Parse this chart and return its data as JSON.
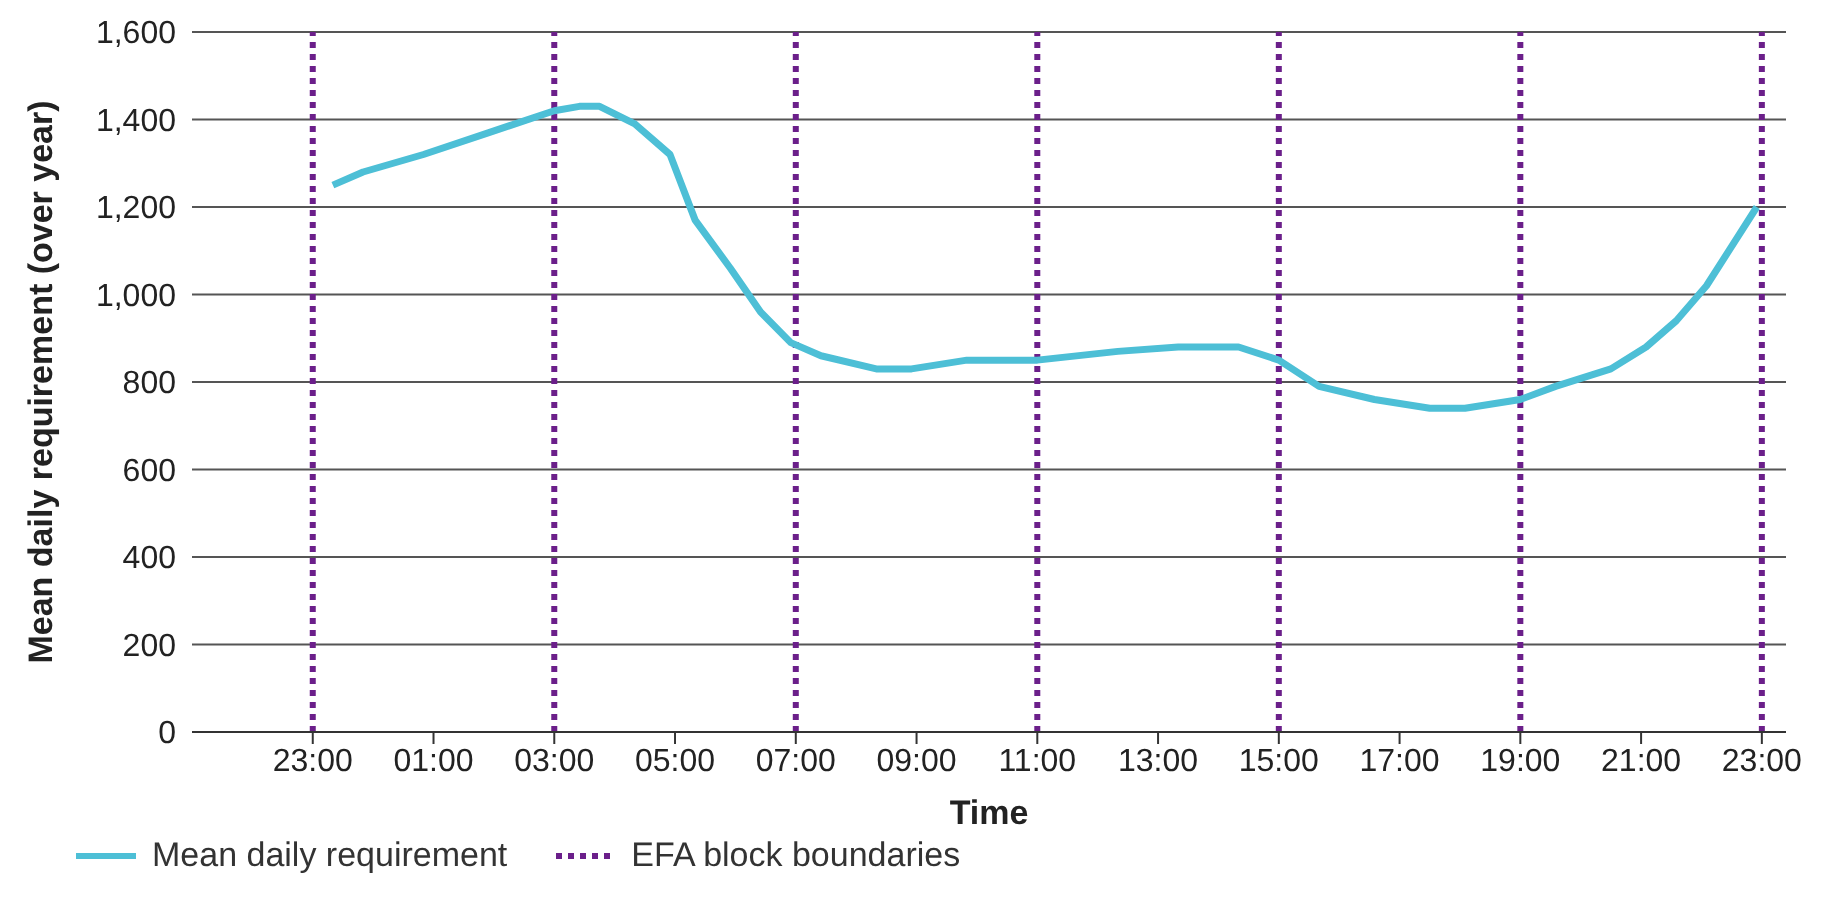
{
  "chart_data": {
    "type": "line",
    "xlabel": "Time",
    "ylabel": "Mean daily requirement (over year)",
    "x": [
      "--01-01T23:20",
      "--01-01T23:50",
      "--01-02T00:50",
      "--01-02T01:55",
      "--01-02T03:00",
      "--01-02T03:25",
      "--01-02T03:45",
      "--01-02T04:20",
      "--01-02T04:55",
      "--01-02T05:20",
      "--01-02T05:55",
      "--01-02T06:25",
      "--01-02T06:55",
      "--01-02T07:25",
      "--01-02T08:20",
      "--01-02T08:55",
      "--01-02T09:50",
      "--01-02T11:00",
      "--01-02T12:20",
      "--01-02T13:20",
      "--01-02T14:20",
      "--01-02T15:00",
      "--01-02T15:40",
      "--01-02T16:35",
      "--01-02T17:30",
      "--01-02T18:05",
      "--01-02T19:00",
      "--01-02T19:35",
      "--01-02T20:30",
      "--01-02T21:05",
      "--01-02T21:35",
      "--01-02T22:05",
      "--01-02T22:30",
      "--01-02T22:55"
    ],
    "series": [
      {
        "name": "Mean daily requirement",
        "color": "#4dbfd6",
        "values": [
          1250,
          1280,
          1320,
          1370,
          1420,
          1430,
          1430,
          1390,
          1320,
          1170,
          1060,
          960,
          890,
          860,
          830,
          830,
          850,
          850,
          870,
          880,
          880,
          850,
          790,
          760,
          740,
          740,
          760,
          790,
          830,
          880,
          940,
          1020,
          1110,
          1200
        ]
      }
    ],
    "xlim": [
      "--01-01T21:00",
      "--01-02T23:24"
    ],
    "xticks": [
      {
        "value": "--01-01T23:00",
        "label": "23:00"
      },
      {
        "value": "--01-02T01:00",
        "label": "01:00"
      },
      {
        "value": "--01-02T03:00",
        "label": "03:00"
      },
      {
        "value": "--01-02T05:00",
        "label": "05:00"
      },
      {
        "value": "--01-02T07:00",
        "label": "07:00"
      },
      {
        "value": "--01-02T09:00",
        "label": "09:00"
      },
      {
        "value": "--01-02T11:00",
        "label": "11:00"
      },
      {
        "value": "--01-02T13:00",
        "label": "13:00"
      },
      {
        "value": "--01-02T15:00",
        "label": "15:00"
      },
      {
        "value": "--01-02T17:00",
        "label": "17:00"
      },
      {
        "value": "--01-02T19:00",
        "label": "19:00"
      },
      {
        "value": "--01-02T21:00",
        "label": "21:00"
      },
      {
        "value": "--01-02T23:00",
        "label": "23:00"
      }
    ],
    "ylim": [
      0,
      1600
    ],
    "yticks": [
      0,
      200,
      400,
      600,
      800,
      {
        "value": 1000,
        "label": "1,000"
      },
      {
        "value": 1200,
        "label": "1,200"
      },
      {
        "value": 1400,
        "label": "1,400"
      },
      {
        "value": 1600,
        "label": "1,600"
      }
    ],
    "ref_lines": [
      {
        "axis": "x",
        "value": "--01-01T23:00",
        "label": "EFA block boundaries",
        "color": "#6b1f8a",
        "line_style": "dotted"
      },
      {
        "axis": "x",
        "value": "--01-02T03:00",
        "color": "#6b1f8a",
        "line_style": "dotted"
      },
      {
        "axis": "x",
        "value": "--01-02T07:00",
        "color": "#6b1f8a",
        "line_style": "dotted"
      },
      {
        "axis": "x",
        "value": "--01-02T11:00",
        "color": "#6b1f8a",
        "line_style": "dotted"
      },
      {
        "axis": "x",
        "value": "--01-02T15:00",
        "color": "#6b1f8a",
        "line_style": "dotted"
      },
      {
        "axis": "x",
        "value": "--01-02T19:00",
        "color": "#6b1f8a",
        "line_style": "dotted"
      },
      {
        "axis": "x",
        "value": "--01-02T23:00",
        "color": "#6b1f8a",
        "line_style": "dotted"
      }
    ],
    "grid": "y",
    "legend": "bottom",
    "marker": "none",
    "line_style": "solid"
  }
}
